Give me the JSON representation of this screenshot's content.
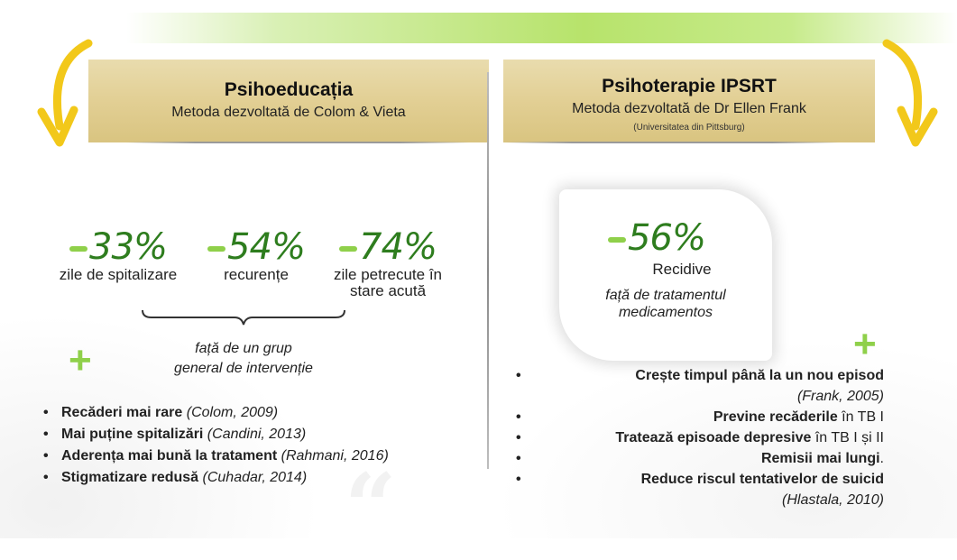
{
  "left": {
    "title": "Psihoeducația",
    "subtitle": "Metoda dezvoltată de Colom & Vieta",
    "stats": [
      {
        "value": "33%",
        "label": "zile de spitalizare"
      },
      {
        "value": "54%",
        "label": "recurențe"
      },
      {
        "value": "74%",
        "label_line1": "zile petrecute în",
        "label_line2": "stare acută"
      }
    ],
    "compare_line1": "față de un grup",
    "compare_line2": "general de intervenție",
    "bullets": [
      {
        "bold": "Recăderi mai rare",
        "ref": " (Colom, 2009)"
      },
      {
        "bold": "Mai puține spitalizări",
        "ref": " (Candini, 2013)"
      },
      {
        "bold": "Aderența mai bună la tratament",
        "ref": " (Rahmani, 2016)"
      },
      {
        "bold": "Stigmatizare redusă",
        "ref": " (Cuhadar, 2014)"
      }
    ]
  },
  "right": {
    "title": "Psihoterapie IPSRT",
    "subtitle": "Metoda dezvoltată de Dr Ellen Frank",
    "affiliation": "(Universitatea din Pittsburg)",
    "stat_value": "56%",
    "stat_label": "Recidive",
    "stat_compare_line1": "față de tratamentul",
    "stat_compare_line2": "medicamentos",
    "bullets": [
      {
        "bold": "Crește timpul până la un nou episod",
        "normal": "",
        "ref": "(Frank, 2005)"
      },
      {
        "bold": "Previne recăderile",
        "normal": " în TB I",
        "ref": ""
      },
      {
        "bold": "Tratează episoade depresive",
        "normal": " în TB I și II",
        "ref": ""
      },
      {
        "bold": "Remisii mai lungi",
        "normal": ".",
        "ref": ""
      },
      {
        "bold": "Reduce riscul tentativelor de suicid",
        "normal": "",
        "ref": "(Hlastala, 2010)"
      }
    ]
  },
  "colors": {
    "accent_green": "#2e7d1e",
    "light_green": "#8fd04a",
    "header_gold": "#e2cf94",
    "arrow_yellow": "#f2c81a"
  },
  "icons": [
    "curved-arrow-icon",
    "plus-icon",
    "brace-icon",
    "quote-icon"
  ]
}
